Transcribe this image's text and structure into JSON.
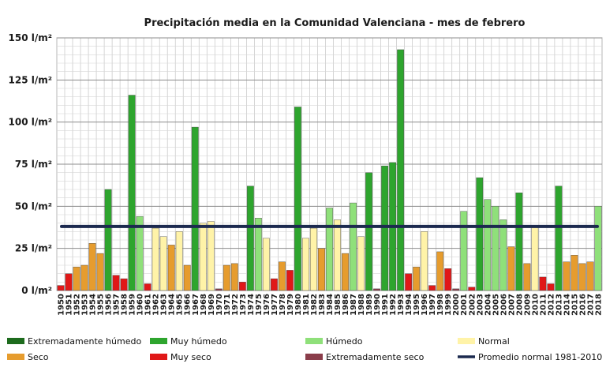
{
  "chart_data": {
    "type": "bar",
    "title": "Precipitación media en la Comunidad Valenciana - mes de febrero",
    "ylim": [
      0,
      150
    ],
    "y_ticks": [
      {
        "value": 0,
        "label": "0 l/m²"
      },
      {
        "value": 25,
        "label": "25 l/m²"
      },
      {
        "value": 50,
        "label": "50 l/m²"
      },
      {
        "value": 75,
        "label": "75 l/m²"
      },
      {
        "value": 100,
        "label": "100 l/m²"
      },
      {
        "value": 125,
        "label": "125 l/m²"
      },
      {
        "value": 150,
        "label": "150 l/m²"
      }
    ],
    "categories": [
      "1950",
      "1951",
      "1952",
      "1953",
      "1954",
      "1955",
      "1956",
      "1957",
      "1958",
      "1959",
      "1960",
      "1961",
      "1962",
      "1963",
      "1964",
      "1965",
      "1966",
      "1967",
      "1968",
      "1969",
      "1970",
      "1971",
      "1972",
      "1973",
      "1974",
      "1975",
      "1976",
      "1977",
      "1978",
      "1979",
      "1980",
      "1981",
      "1982",
      "1983",
      "1984",
      "1985",
      "1986",
      "1987",
      "1988",
      "1989",
      "1990",
      "1991",
      "1992",
      "1993",
      "1994",
      "1995",
      "1996",
      "1997",
      "1998",
      "1999",
      "2000",
      "2001",
      "2002",
      "2003",
      "2004",
      "2005",
      "2006",
      "2007",
      "2008",
      "2009",
      "2010",
      "2011",
      "2012",
      "2013",
      "2014",
      "2015",
      "2016",
      "2017",
      "2018"
    ],
    "values": [
      3,
      10,
      14,
      15,
      28,
      22,
      60,
      9,
      7,
      116,
      44,
      4,
      37,
      32,
      27,
      35,
      15,
      97,
      40,
      41,
      1,
      15,
      16,
      5,
      62,
      43,
      31,
      7,
      17,
      12,
      109,
      31,
      37,
      25,
      49,
      42,
      22,
      52,
      32,
      70,
      1,
      74,
      76,
      143,
      10,
      14,
      35,
      3,
      23,
      13,
      1,
      47,
      2,
      67,
      54,
      50,
      42,
      26,
      58,
      16,
      38,
      8,
      4,
      62,
      17,
      21,
      16,
      17,
      50
    ],
    "classes": [
      "muy_seco",
      "muy_seco",
      "seco",
      "seco",
      "seco",
      "seco",
      "muy_humedo",
      "muy_seco",
      "muy_seco",
      "muy_humedo",
      "humedo",
      "muy_seco",
      "normal",
      "normal",
      "seco",
      "normal",
      "seco",
      "muy_humedo",
      "normal",
      "normal",
      "extremadamente_seco",
      "seco",
      "seco",
      "muy_seco",
      "muy_humedo",
      "humedo",
      "normal",
      "muy_seco",
      "seco",
      "muy_seco",
      "muy_humedo",
      "normal",
      "normal",
      "seco",
      "humedo",
      "normal",
      "seco",
      "humedo",
      "normal",
      "muy_humedo",
      "extremadamente_seco",
      "muy_humedo",
      "muy_humedo",
      "muy_humedo",
      "muy_seco",
      "seco",
      "normal",
      "muy_seco",
      "seco",
      "muy_seco",
      "extremadamente_seco",
      "humedo",
      "muy_seco",
      "muy_humedo",
      "humedo",
      "humedo",
      "humedo",
      "seco",
      "muy_humedo",
      "seco",
      "normal",
      "muy_seco",
      "muy_seco",
      "muy_humedo",
      "seco",
      "seco",
      "seco",
      "seco",
      "humedo"
    ],
    "reference_line": {
      "name": "Promedio normal 1981-2010",
      "value": 38,
      "color": "#1c2a4f"
    },
    "class_colors": {
      "extremadamente_humedo": "#1d6b1d",
      "muy_humedo": "#2ea52e",
      "humedo": "#8fe07a",
      "normal": "#fff3a8",
      "seco": "#e69c2e",
      "muy_seco": "#e01818",
      "extremadamente_seco": "#8a3d4a"
    },
    "legend": [
      {
        "key": "extremadamente_humedo",
        "label": "Extremadamente húmedo"
      },
      {
        "key": "muy_humedo",
        "label": "Muy húmedo"
      },
      {
        "key": "humedo",
        "label": "Húmedo"
      },
      {
        "key": "normal",
        "label": "Normal"
      },
      {
        "key": "seco",
        "label": "Seco"
      },
      {
        "key": "muy_seco",
        "label": "Muy seco"
      },
      {
        "key": "extremadamente_seco",
        "label": "Extremadamente seco"
      },
      {
        "key": "promedio",
        "label": "Promedio normal 1981-2010"
      }
    ],
    "grid": true,
    "legend_position": "bottom"
  }
}
